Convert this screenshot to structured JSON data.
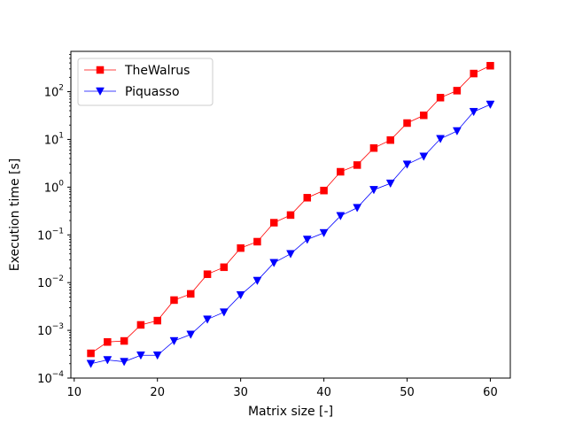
{
  "chart_data": {
    "type": "line",
    "title": "",
    "xlabel": "Matrix size [-]",
    "ylabel": "Execution time [s]",
    "xlim": [
      9.6,
      62.4
    ],
    "ylim": [
      0.0001,
      700
    ],
    "yscale": "log",
    "grid": false,
    "legend_position": "top-left",
    "x_ticks": [
      10,
      20,
      30,
      40,
      50,
      60
    ],
    "x_tick_labels": [
      "10",
      "20",
      "30",
      "40",
      "50",
      "60"
    ],
    "y_ticks": [
      0.0001,
      0.001,
      0.01,
      0.1,
      1,
      10,
      100
    ],
    "y_tick_labels": [
      {
        "base": "10",
        "exp": "−4"
      },
      {
        "base": "10",
        "exp": "−3"
      },
      {
        "base": "10",
        "exp": "−2"
      },
      {
        "base": "10",
        "exp": "−1"
      },
      {
        "base": "10",
        "exp": "0"
      },
      {
        "base": "10",
        "exp": "1"
      },
      {
        "base": "10",
        "exp": "2"
      }
    ],
    "x": [
      12,
      14,
      16,
      18,
      20,
      22,
      24,
      26,
      28,
      30,
      32,
      34,
      36,
      38,
      40,
      42,
      44,
      46,
      48,
      50,
      52,
      54,
      56,
      58,
      60
    ],
    "series": [
      {
        "name": "TheWalrus",
        "color": "#ff0000",
        "marker": "square",
        "values": [
          0.00033,
          0.00057,
          0.0006,
          0.0013,
          0.0016,
          0.0043,
          0.0058,
          0.015,
          0.021,
          0.053,
          0.072,
          0.18,
          0.26,
          0.6,
          0.85,
          2.1,
          2.9,
          6.6,
          9.7,
          22,
          32,
          75,
          105,
          240,
          350
        ]
      },
      {
        "name": "Piquasso",
        "color": "#0000ff",
        "marker": "triangle-down",
        "values": [
          0.0002,
          0.00024,
          0.00022,
          0.0003,
          0.0003,
          0.0006,
          0.00082,
          0.0017,
          0.0024,
          0.0055,
          0.011,
          0.026,
          0.04,
          0.08,
          0.11,
          0.25,
          0.37,
          0.88,
          1.2,
          3.0,
          4.4,
          10.3,
          15,
          38,
          54
        ]
      }
    ]
  }
}
